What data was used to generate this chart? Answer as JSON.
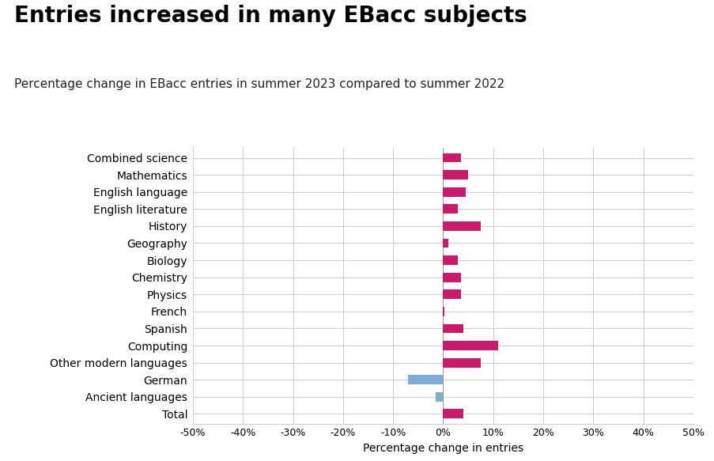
{
  "title": "Entries increased in many EBacc subjects",
  "subtitle": "Percentage change in EBacc entries in summer 2023 compared to summer 2022",
  "xlabel": "Percentage change in entries",
  "categories": [
    "Combined science",
    "Mathematics",
    "English language",
    "English literature",
    "History",
    "Geography",
    "Biology",
    "Chemistry",
    "Physics",
    "French",
    "Spanish",
    "Computing",
    "Other modern languages",
    "German",
    "Ancient languages",
    "Total"
  ],
  "values": [
    3.5,
    5.0,
    4.5,
    3.0,
    7.5,
    1.0,
    3.0,
    3.5,
    3.5,
    0.2,
    4.0,
    11.0,
    7.5,
    -7.0,
    -1.5,
    4.0
  ],
  "bar_colors": [
    "#cc1a6a",
    "#cc1a6a",
    "#cc1a6a",
    "#cc1a6a",
    "#cc1a6a",
    "#cc1a6a",
    "#cc1a6a",
    "#cc1a6a",
    "#cc1a6a",
    "#cc1a6a",
    "#cc1a6a",
    "#cc1a6a",
    "#cc1a6a",
    "#7bafd4",
    "#7bafd4",
    "#cc1a6a"
  ],
  "xlim": [
    -50,
    50
  ],
  "xticks": [
    -50,
    -40,
    -30,
    -20,
    -10,
    0,
    10,
    20,
    30,
    40,
    50
  ],
  "xtick_labels": [
    "-50%",
    "-40%",
    "-30%",
    "-20%",
    "-10%",
    "0%",
    "10%",
    "20%",
    "30%",
    "40%",
    "50%"
  ],
  "background_color": "#ffffff",
  "grid_color": "#cccccc",
  "title_fontsize": 20,
  "subtitle_fontsize": 11,
  "axis_label_fontsize": 10,
  "tick_fontsize": 9,
  "category_fontsize": 10,
  "bar_height": 0.55
}
